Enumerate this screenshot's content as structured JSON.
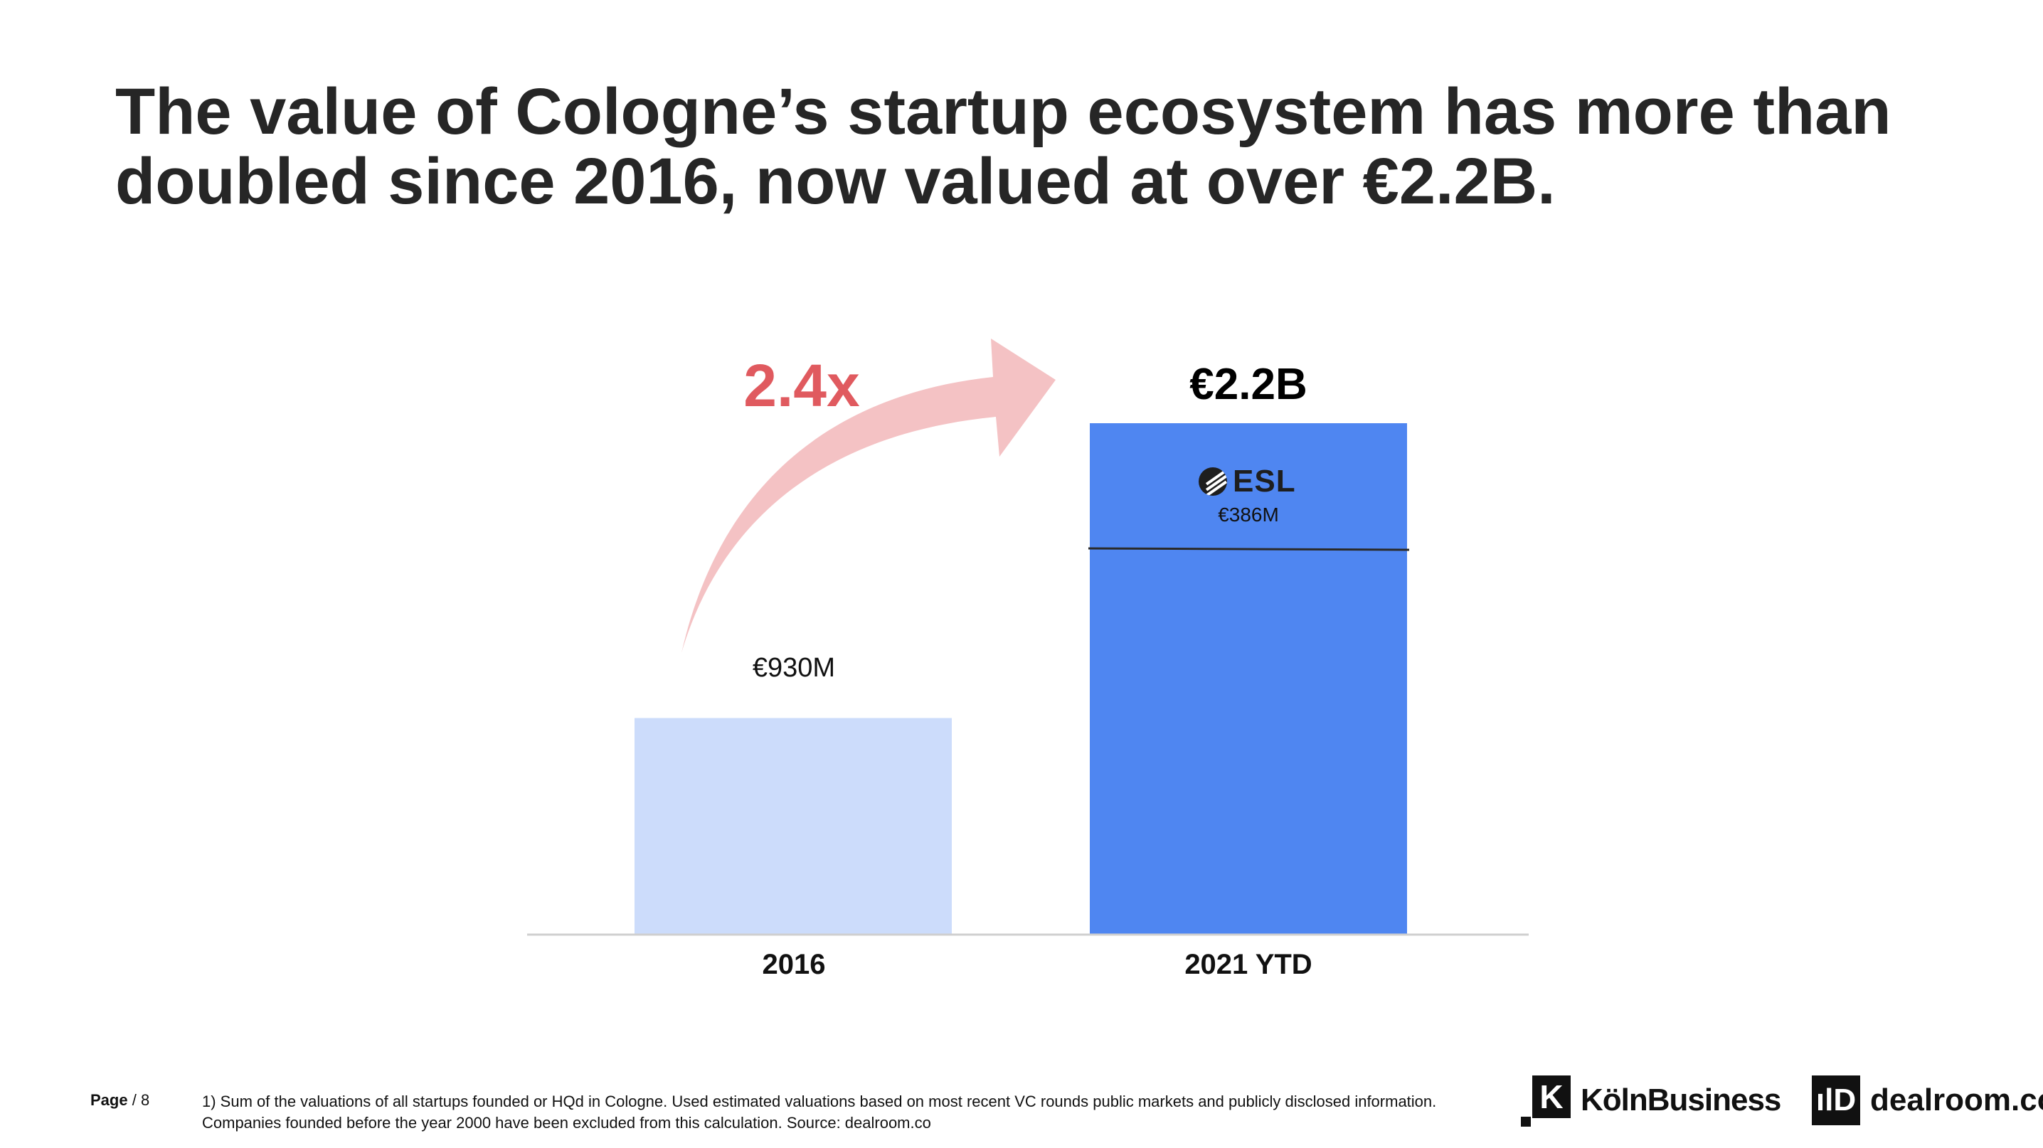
{
  "title_line1": "The value of Cologne’s startup ecosystem has more than",
  "title_line2": "doubled since 2016, now valued at over €2.2B.",
  "chart_data": {
    "type": "bar",
    "title": "The value of Cologne’s startup ecosystem has more than doubled since 2016, now valued at over €2.2B.",
    "unit": "€M",
    "categories": [
      "2016",
      "2021 YTD"
    ],
    "values": [
      930,
      2200
    ],
    "data_labels": [
      "€930M",
      "€2.2B"
    ],
    "colors": [
      "#ccdcfb",
      "#4f86f1"
    ],
    "segment": {
      "name": "ESL",
      "category": "2021 YTD",
      "value": 386,
      "label": "€386M"
    },
    "annotation": {
      "text": "2.4x",
      "color": "#e05a5f",
      "arrow_color": "#f4c2c4"
    },
    "xlabel": "",
    "ylabel": "",
    "grid": false,
    "legend": "none"
  },
  "esl_logo": "ESL",
  "footer": {
    "page_label": "Page",
    "page_number": "/ 8",
    "footnote_line1": "1) Sum of the valuations of all startups founded or HQd in Cologne. Used estimated valuations based on most recent VC rounds public markets and publicly disclosed information.",
    "footnote_line2": "Companies founded before the year 2000 have been excluded from this calculation. Source: dealroom.co"
  },
  "logos": {
    "koeln_mark": "K",
    "koeln": "KölnBusiness",
    "dealroom_mark": "ılD",
    "dealroom": "dealroom.co"
  }
}
